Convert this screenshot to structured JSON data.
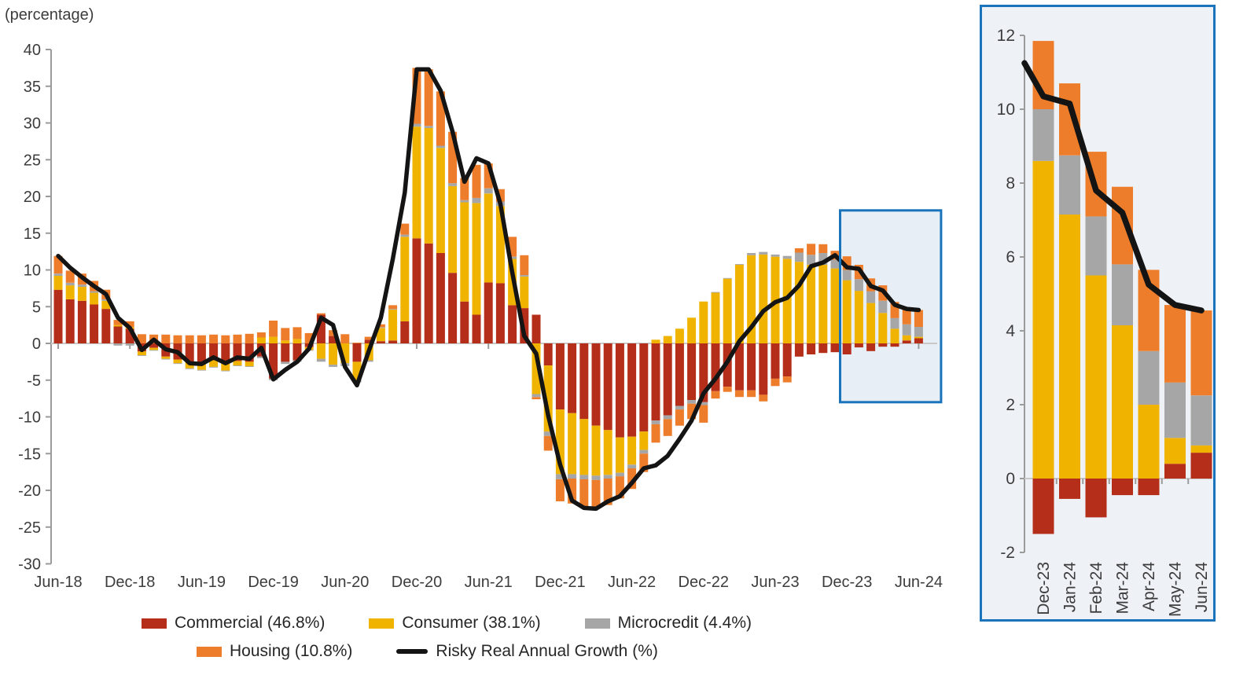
{
  "note": "(percentage)",
  "colors": {
    "commercial": "#b42e19",
    "consumer": "#f0b400",
    "microcredit": "#a6a6a6",
    "housing": "#ed7d2b",
    "growth_line": "#141414",
    "highlight_border": "#1a74bb",
    "highlight_fill": "#e7eef6",
    "inset_background": "#eef2f7",
    "axis": "#9b9b9b",
    "zero_line": "#c9c9c9",
    "text": "#3c3c3c"
  },
  "legend": {
    "items": [
      {
        "key": "commercial",
        "label": "Commercial (46.8%)",
        "type": "swatch"
      },
      {
        "key": "consumer",
        "label": "Consumer (38.1%)",
        "type": "swatch"
      },
      {
        "key": "microcredit",
        "label": "Microcredit (4.4%)",
        "type": "swatch"
      },
      {
        "key": "housing",
        "label": "Housing (10.8%)",
        "type": "swatch"
      },
      {
        "key": "growth_line",
        "label": "Risky Real Annual Growth (%)",
        "type": "line"
      }
    ]
  },
  "chart_data": [
    {
      "id": "main",
      "type": "bar",
      "subtype": "stacked-with-line",
      "title": "",
      "xlabel": "",
      "ylabel": "(percentage)",
      "grid": false,
      "legend_position": "bottom",
      "ylim": [
        -30,
        40
      ],
      "yticks": [
        40,
        35,
        30,
        25,
        20,
        15,
        10,
        5,
        0,
        -5,
        -10,
        -15,
        -20,
        -25,
        -30
      ],
      "x_label_every": 6,
      "categories": [
        "Jun-18",
        "Jul-18",
        "Aug-18",
        "Sep-18",
        "Oct-18",
        "Nov-18",
        "Dec-18",
        "Jan-19",
        "Feb-19",
        "Mar-19",
        "Apr-19",
        "May-19",
        "Jun-19",
        "Jul-19",
        "Aug-19",
        "Sep-19",
        "Oct-19",
        "Nov-19",
        "Dec-19",
        "Jan-20",
        "Feb-20",
        "Mar-20",
        "Apr-20",
        "May-20",
        "Jun-20",
        "Jul-20",
        "Aug-20",
        "Sep-20",
        "Oct-20",
        "Nov-20",
        "Dec-20",
        "Jan-21",
        "Feb-21",
        "Mar-21",
        "Apr-21",
        "May-21",
        "Jun-21",
        "Jul-21",
        "Aug-21",
        "Sep-21",
        "Oct-21",
        "Nov-21",
        "Dec-21",
        "Jan-22",
        "Feb-22",
        "Mar-22",
        "Apr-22",
        "May-22",
        "Jun-22",
        "Jul-22",
        "Aug-22",
        "Sep-22",
        "Oct-22",
        "Nov-22",
        "Dec-22",
        "Jan-23",
        "Feb-23",
        "Mar-23",
        "Apr-23",
        "May-23",
        "Jun-23",
        "Jul-23",
        "Aug-23",
        "Sep-23",
        "Oct-23",
        "Nov-23",
        "Dec-23",
        "Jan-24",
        "Feb-24",
        "Mar-24",
        "Apr-24",
        "May-24",
        "Jun-24"
      ],
      "series": [
        {
          "name": "Commercial (46.8%)",
          "color_key": "commercial",
          "values": [
            7.3,
            6.0,
            5.8,
            5.3,
            4.7,
            2.3,
            2.0,
            -1.1,
            -0.6,
            -1.8,
            -2.2,
            -2.5,
            -2.7,
            -2.3,
            -2.7,
            -2.4,
            -2.5,
            -1.8,
            -4.8,
            -2.5,
            -2.3,
            -0.5,
            3.9,
            1.0,
            0.0,
            -2.5,
            0.5,
            0.3,
            0.4,
            3.0,
            14.3,
            13.6,
            12.3,
            9.6,
            5.7,
            3.9,
            8.3,
            8.2,
            5.2,
            4.8,
            3.9,
            -3.0,
            -9.0,
            -9.5,
            -10.3,
            -11.2,
            -11.8,
            -12.8,
            -12.7,
            -12.0,
            -10.5,
            -9.8,
            -8.5,
            -7.7,
            -8.0,
            -6.5,
            -5.9,
            -6.4,
            -6.4,
            -7.0,
            -4.8,
            -4.5,
            -1.8,
            -1.5,
            -1.3,
            -1.2,
            -1.5,
            -0.55,
            -1.05,
            -0.45,
            -0.45,
            0.4,
            0.7
          ]
        },
        {
          "name": "Consumer (38.1%)",
          "color_key": "consumer",
          "values": [
            1.9,
            1.9,
            1.9,
            1.6,
            1.1,
            0.2,
            0.2,
            -0.5,
            -0.3,
            -0.3,
            -0.5,
            -0.9,
            -0.9,
            -0.9,
            -1.0,
            -0.6,
            -0.6,
            0.8,
            0.9,
            0.4,
            0.6,
            -0.4,
            -2.1,
            -2.9,
            -2.7,
            -2.5,
            -2.3,
            1.8,
            4.2,
            11.5,
            15.2,
            15.7,
            14.3,
            11.8,
            13.5,
            15.2,
            12.1,
            10.5,
            6.3,
            4.3,
            -6.9,
            -9.0,
            -8.8,
            -8.3,
            -7.6,
            -6.8,
            -6.1,
            -4.8,
            -3.8,
            -2.5,
            0.5,
            1.0,
            2.0,
            3.5,
            5.7,
            6.9,
            8.8,
            10.7,
            12.0,
            12.1,
            11.8,
            11.5,
            11.1,
            10.7,
            10.7,
            10.2,
            8.6,
            7.15,
            5.5,
            4.15,
            2.0,
            0.7,
            0.2
          ]
        },
        {
          "name": "Microcredit (4.4%)",
          "color_key": "microcredit",
          "values": [
            0.3,
            0.35,
            0.3,
            0.2,
            0.2,
            -0.3,
            -0.3,
            -0.1,
            -0.1,
            -0.1,
            -0.1,
            -0.1,
            -0.1,
            -0.1,
            -0.1,
            -0.1,
            -0.1,
            -0.2,
            -0.2,
            -0.3,
            -0.2,
            -0.1,
            -0.4,
            -0.3,
            -0.4,
            -0.3,
            -0.2,
            0.1,
            0.1,
            0.3,
            0.4,
            0.3,
            0.3,
            0.4,
            0.3,
            0.7,
            0.7,
            0.6,
            0.3,
            0.2,
            -0.4,
            -0.6,
            -0.7,
            -0.6,
            -0.6,
            -0.6,
            -0.5,
            -0.5,
            -0.5,
            -0.5,
            -0.5,
            -0.5,
            -0.5,
            -0.5,
            -0.4,
            0.1,
            0.1,
            0.1,
            0.3,
            0.35,
            0.3,
            0.4,
            1.25,
            1.35,
            1.6,
            1.2,
            1.4,
            1.6,
            1.6,
            1.65,
            1.45,
            1.5,
            1.35
          ]
        },
        {
          "name": "Housing (10.8%)",
          "color_key": "housing",
          "values": [
            2.4,
            1.65,
            1.5,
            1.4,
            1.3,
            0.7,
            0.8,
            1.25,
            1.2,
            1.2,
            1.1,
            1.1,
            1.1,
            1.2,
            1.1,
            1.2,
            1.3,
            0.7,
            2.2,
            1.7,
            1.6,
            1.4,
            0.2,
            0.8,
            1.25,
            0.1,
            0.4,
            0.4,
            0.5,
            1.5,
            7.6,
            7.7,
            7.4,
            7.0,
            3.0,
            4.5,
            3.4,
            1.7,
            2.7,
            2.7,
            -0.3,
            -2.0,
            -3.0,
            -3.4,
            -3.8,
            -3.9,
            -3.6,
            -3.0,
            -2.8,
            -2.5,
            -2.5,
            -2.3,
            -2.2,
            -2.1,
            -2.4,
            -1.0,
            -0.7,
            -0.9,
            -0.9,
            -0.9,
            -1.0,
            -0.8,
            0.6,
            1.5,
            1.2,
            1.2,
            1.85,
            1.95,
            1.75,
            2.1,
            2.2,
            2.1,
            2.3
          ]
        }
      ],
      "line": {
        "name": "Risky Real Annual Growth (%)",
        "color_key": "growth_line",
        "values": [
          11.9,
          10.3,
          9.0,
          7.8,
          6.7,
          3.5,
          2.1,
          -0.9,
          0.5,
          -0.8,
          -1.2,
          -2.7,
          -2.8,
          -1.9,
          -2.7,
          -1.9,
          -2.1,
          -0.6,
          -4.9,
          -3.6,
          -2.5,
          -0.7,
          3.5,
          2.5,
          -3.2,
          -5.7,
          -1.0,
          3.5,
          11.5,
          20.5,
          37.3,
          37.3,
          34.4,
          28.8,
          22.0,
          25.2,
          24.5,
          19.0,
          9.6,
          1.0,
          -1.4,
          -9.8,
          -16.5,
          -21.4,
          -22.4,
          -22.5,
          -21.5,
          -20.8,
          -19.0,
          -17.0,
          -16.6,
          -15.3,
          -13.0,
          -10.5,
          -6.8,
          -4.8,
          -2.5,
          0.3,
          2.2,
          4.4,
          5.6,
          6.2,
          7.9,
          10.5,
          11.0,
          12.0,
          10.35,
          10.15,
          7.8,
          7.2,
          5.25,
          4.7,
          4.55
        ]
      },
      "highlight_box": {
        "from": "Dec-23",
        "to": "Jun-24",
        "top_value": 18.1,
        "bottom_value": -8.0
      }
    },
    {
      "id": "inset",
      "type": "bar",
      "subtype": "stacked-with-line",
      "title": "",
      "grid": false,
      "ylim": [
        -2,
        12
      ],
      "yticks": [
        12,
        10,
        8,
        6,
        4,
        2,
        0,
        -2
      ],
      "x_label_every": 1,
      "categories": [
        "Dec-23",
        "Jan-24",
        "Feb-24",
        "Mar-24",
        "Apr-24",
        "May-24",
        "Jun-24"
      ],
      "series": [
        {
          "name": "Commercial (46.8%)",
          "color_key": "commercial",
          "values": [
            -1.5,
            -0.55,
            -1.05,
            -0.45,
            -0.45,
            0.4,
            0.7
          ]
        },
        {
          "name": "Consumer (38.1%)",
          "color_key": "consumer",
          "values": [
            8.6,
            7.15,
            5.5,
            4.15,
            2.0,
            0.7,
            0.2
          ]
        },
        {
          "name": "Microcredit (4.4%)",
          "color_key": "microcredit",
          "values": [
            1.4,
            1.6,
            1.6,
            1.65,
            1.45,
            1.5,
            1.35
          ]
        },
        {
          "name": "Housing (10.8%)",
          "color_key": "housing",
          "values": [
            1.85,
            1.95,
            1.75,
            2.1,
            2.2,
            2.1,
            2.3
          ]
        }
      ],
      "line": {
        "name": "Risky Real Annual Growth (%)",
        "color_key": "growth_line",
        "edge_lead_in_value": 11.25,
        "values": [
          10.35,
          10.15,
          7.8,
          7.2,
          5.25,
          4.7,
          4.55
        ]
      }
    }
  ]
}
